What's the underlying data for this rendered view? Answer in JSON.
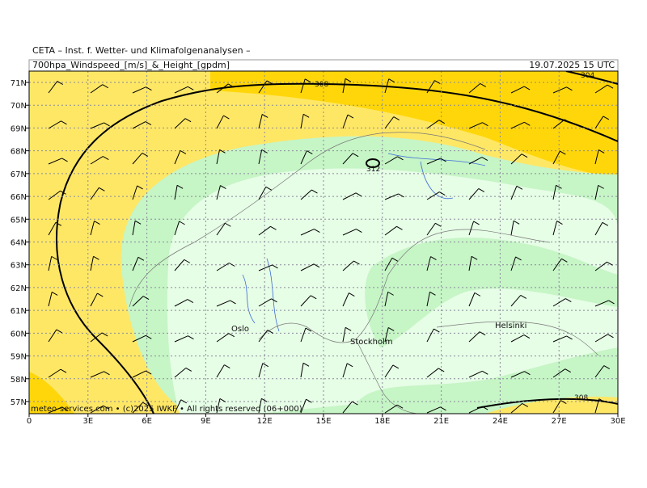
{
  "header": {
    "institute": "CETA – Inst. f. Wetter- und Klimafolgenanalysen –",
    "parameter": "700hpa_Windspeed_[m/s]_&_Height_[gpdm]",
    "valid_time": "19.07.2025 15 UTC"
  },
  "lat_labels": [
    "71N",
    "70N",
    "69N",
    "68N",
    "67N",
    "66N",
    "65N",
    "64N",
    "63N",
    "62N",
    "61N",
    "60N",
    "59N",
    "58N",
    "57N"
  ],
  "lon_labels": [
    "0",
    "3E",
    "6E",
    "9E",
    "12E",
    "15E",
    "18E",
    "21E",
    "24E",
    "27E",
    "30E"
  ],
  "contour_labels": [
    "308",
    "304",
    "312",
    "308"
  ],
  "cities": [
    "Oslo",
    "Stockholm",
    "Helsinki"
  ],
  "footer": "meteo-services.com • (c)2025 IWKF • All rights reserved (06+000)"
}
